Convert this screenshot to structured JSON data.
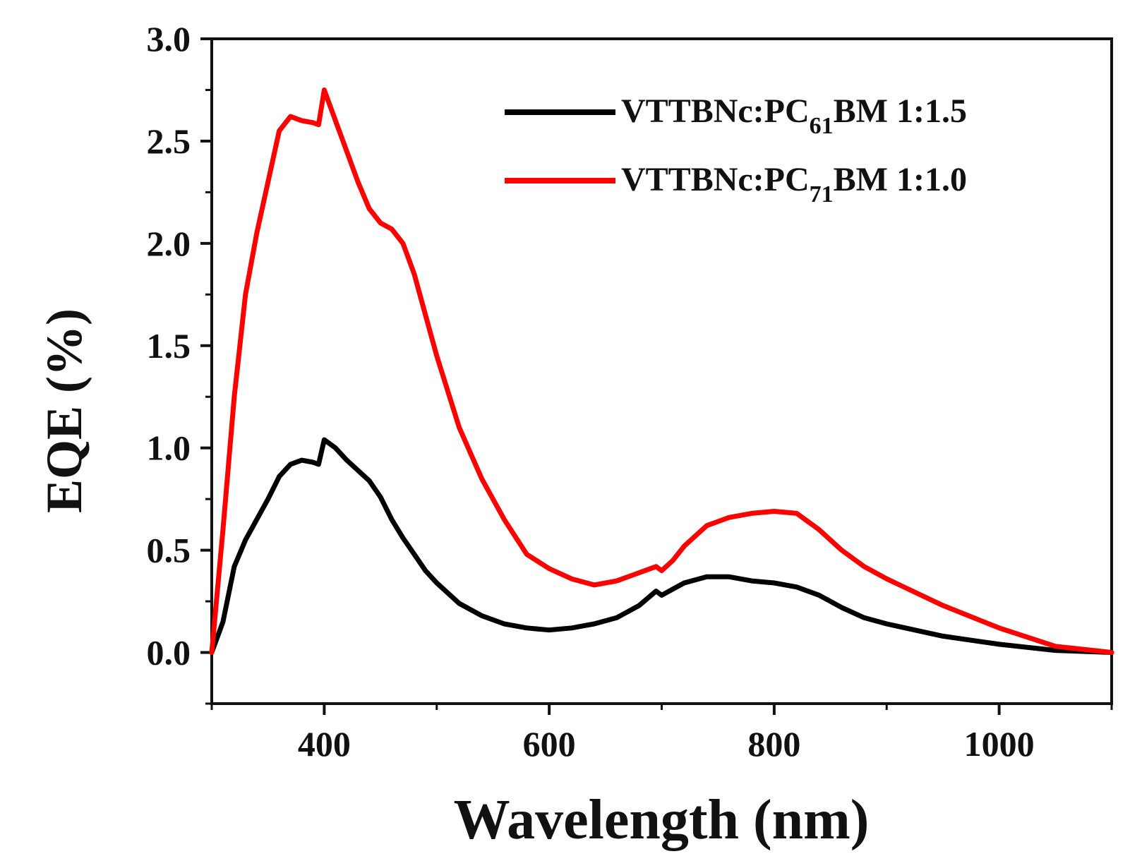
{
  "chart_data": {
    "type": "line",
    "title": "",
    "xlabel": "Wavelength (nm)",
    "ylabel": "EQE (%)",
    "xlim": [
      300,
      1100
    ],
    "ylim": [
      -0.25,
      3.0
    ],
    "x_ticks": [
      400,
      600,
      800,
      1000
    ],
    "y_ticks": [
      0.0,
      0.5,
      1.0,
      1.5,
      2.0,
      2.5,
      3.0
    ],
    "x_tick_labels": [
      "400",
      "600",
      "800",
      "1000"
    ],
    "y_tick_labels": [
      "0.0",
      "0.5",
      "1.0",
      "1.5",
      "2.0",
      "2.5",
      "3.0"
    ],
    "grid": false,
    "legend_position": "top-right",
    "series": [
      {
        "name": "VTTBNc:PC61BM 1:1.5",
        "legend": {
          "prefix": "VTTBNc:PC",
          "sub": "61",
          "suffix": "BM 1:1.5"
        },
        "color": "#000000",
        "x": [
          300,
          310,
          320,
          330,
          340,
          350,
          360,
          370,
          380,
          390,
          395,
          400,
          410,
          420,
          430,
          440,
          450,
          460,
          470,
          480,
          490,
          500,
          520,
          540,
          560,
          580,
          600,
          620,
          640,
          660,
          680,
          695,
          700,
          710,
          720,
          740,
          760,
          780,
          800,
          820,
          840,
          860,
          880,
          900,
          950,
          1000,
          1050,
          1100
        ],
        "y": [
          0.0,
          0.15,
          0.42,
          0.55,
          0.65,
          0.75,
          0.86,
          0.92,
          0.94,
          0.93,
          0.92,
          1.04,
          1.0,
          0.94,
          0.89,
          0.84,
          0.76,
          0.65,
          0.56,
          0.48,
          0.4,
          0.34,
          0.24,
          0.18,
          0.14,
          0.12,
          0.11,
          0.12,
          0.14,
          0.17,
          0.23,
          0.3,
          0.28,
          0.31,
          0.34,
          0.37,
          0.37,
          0.35,
          0.34,
          0.32,
          0.28,
          0.22,
          0.17,
          0.14,
          0.08,
          0.04,
          0.01,
          0.0
        ]
      },
      {
        "name": "VTTBNc:PC71BM 1:1.0",
        "legend": {
          "prefix": "VTTBNc:PC",
          "sub": "71",
          "suffix": "BM 1:1.0"
        },
        "color": "#ff0000",
        "x": [
          300,
          310,
          320,
          330,
          340,
          350,
          360,
          370,
          380,
          390,
          395,
          400,
          410,
          420,
          430,
          440,
          450,
          460,
          470,
          480,
          490,
          500,
          520,
          540,
          560,
          580,
          600,
          620,
          640,
          660,
          680,
          695,
          700,
          710,
          720,
          740,
          760,
          780,
          800,
          820,
          840,
          860,
          880,
          900,
          950,
          1000,
          1050,
          1100
        ],
        "y": [
          0.0,
          0.6,
          1.25,
          1.75,
          2.05,
          2.3,
          2.55,
          2.62,
          2.6,
          2.59,
          2.58,
          2.75,
          2.6,
          2.45,
          2.3,
          2.17,
          2.1,
          2.07,
          2.0,
          1.85,
          1.65,
          1.45,
          1.1,
          0.85,
          0.65,
          0.48,
          0.41,
          0.36,
          0.33,
          0.35,
          0.39,
          0.42,
          0.4,
          0.45,
          0.52,
          0.62,
          0.66,
          0.68,
          0.69,
          0.68,
          0.6,
          0.5,
          0.42,
          0.36,
          0.23,
          0.12,
          0.03,
          0.0
        ]
      }
    ]
  }
}
